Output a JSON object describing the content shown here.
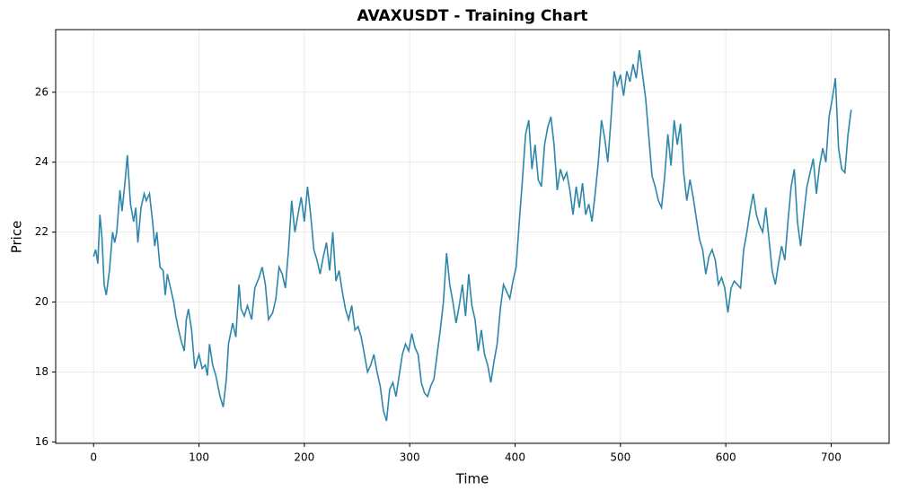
{
  "chart_data": {
    "type": "line",
    "title": "AVAXUSDT - Training Chart",
    "x_label": "Time",
    "y_label": "Price",
    "x": [
      0,
      2,
      4,
      6,
      8,
      10,
      12,
      15,
      18,
      20,
      22,
      25,
      27,
      30,
      32,
      35,
      38,
      40,
      42,
      45,
      48,
      50,
      53,
      56,
      58,
      60,
      63,
      66,
      68,
      70,
      73,
      76,
      78,
      80,
      83,
      86,
      88,
      90,
      93,
      96,
      100,
      103,
      106,
      108,
      110,
      113,
      116,
      120,
      123,
      126,
      128,
      132,
      135,
      138,
      140,
      143,
      146,
      150,
      153,
      157,
      160,
      163,
      166,
      170,
      173,
      176,
      179,
      182,
      185,
      188,
      191,
      194,
      197,
      200,
      203,
      206,
      209,
      212,
      215,
      218,
      221,
      224,
      227,
      230,
      233,
      236,
      239,
      242,
      245,
      248,
      251,
      254,
      257,
      260,
      263,
      266,
      269,
      272,
      275,
      278,
      281,
      284,
      287,
      290,
      293,
      296,
      299,
      302,
      305,
      308,
      311,
      314,
      317,
      320,
      323,
      326,
      329,
      332,
      335,
      338,
      341,
      344,
      347,
      350,
      353,
      356,
      359,
      362,
      365,
      368,
      371,
      374,
      377,
      380,
      383,
      386,
      389,
      392,
      395,
      398,
      401,
      404,
      407,
      410,
      413,
      416,
      419,
      422,
      425,
      428,
      431,
      434,
      437,
      440,
      443,
      446,
      449,
      452,
      455,
      458,
      461,
      464,
      467,
      470,
      473,
      476,
      479,
      482,
      485,
      488,
      491,
      494,
      497,
      500,
      503,
      506,
      509,
      512,
      515,
      518,
      521,
      524,
      527,
      530,
      533,
      536,
      539,
      542,
      545,
      548,
      551,
      554,
      557,
      560,
      563,
      566,
      569,
      572,
      575,
      578,
      581,
      584,
      587,
      590,
      593,
      596,
      599,
      602,
      605,
      608,
      611,
      614,
      617,
      620,
      623,
      626,
      629,
      632,
      635,
      638,
      641,
      644,
      647,
      650,
      653,
      656,
      659,
      662,
      665,
      668,
      671,
      674,
      677,
      680,
      683,
      686,
      689,
      692,
      695,
      698,
      701,
      704,
      707,
      710,
      713,
      716,
      719
    ],
    "series": [
      {
        "name": "Price",
        "color": "#2e86ab",
        "values": [
          21.3,
          21.5,
          21.1,
          22.5,
          21.8,
          20.5,
          20.2,
          20.9,
          22.0,
          21.7,
          22.0,
          23.2,
          22.6,
          23.5,
          24.2,
          22.8,
          22.3,
          22.7,
          21.7,
          22.7,
          23.1,
          22.9,
          23.1,
          22.3,
          21.6,
          22.0,
          21.0,
          20.9,
          20.2,
          20.8,
          20.4,
          20.0,
          19.6,
          19.3,
          18.9,
          18.6,
          19.5,
          19.8,
          19.2,
          18.1,
          18.5,
          18.1,
          18.2,
          17.9,
          18.8,
          18.2,
          17.9,
          17.3,
          17.0,
          17.8,
          18.8,
          19.4,
          19.0,
          20.5,
          19.8,
          19.6,
          19.9,
          19.5,
          20.4,
          20.7,
          21.0,
          20.5,
          19.5,
          19.7,
          20.1,
          21.0,
          20.8,
          20.4,
          21.5,
          22.9,
          22.0,
          22.5,
          23.0,
          22.3,
          23.3,
          22.5,
          21.5,
          21.2,
          20.8,
          21.3,
          21.7,
          20.9,
          22.0,
          20.6,
          20.9,
          20.3,
          19.8,
          19.5,
          19.9,
          19.2,
          19.3,
          19.0,
          18.5,
          18.0,
          18.2,
          18.5,
          18.0,
          17.6,
          16.9,
          16.6,
          17.5,
          17.7,
          17.3,
          17.9,
          18.5,
          18.8,
          18.6,
          19.1,
          18.7,
          18.5,
          17.7,
          17.4,
          17.3,
          17.6,
          17.8,
          18.5,
          19.2,
          20.0,
          21.4,
          20.5,
          20.0,
          19.4,
          19.9,
          20.5,
          19.6,
          20.8,
          19.9,
          19.5,
          18.6,
          19.2,
          18.5,
          18.2,
          17.7,
          18.3,
          18.8,
          19.8,
          20.5,
          20.3,
          20.1,
          20.6,
          21.0,
          22.3,
          23.5,
          24.8,
          25.2,
          23.8,
          24.5,
          23.5,
          23.3,
          24.5,
          25.0,
          25.3,
          24.5,
          23.2,
          23.8,
          23.5,
          23.7,
          23.2,
          22.5,
          23.3,
          22.7,
          23.4,
          22.5,
          22.8,
          22.3,
          23.1,
          24.0,
          25.2,
          24.7,
          24.0,
          25.2,
          26.6,
          26.2,
          26.5,
          25.9,
          26.6,
          26.3,
          26.8,
          26.4,
          27.2,
          26.5,
          25.8,
          24.7,
          23.6,
          23.3,
          22.9,
          22.7,
          23.6,
          24.8,
          23.9,
          25.2,
          24.5,
          25.1,
          23.7,
          22.9,
          23.5,
          23.0,
          22.4,
          21.8,
          21.5,
          20.8,
          21.3,
          21.5,
          21.2,
          20.5,
          20.7,
          20.4,
          19.7,
          20.4,
          20.6,
          20.5,
          20.4,
          21.5,
          22.0,
          22.6,
          23.1,
          22.5,
          22.2,
          22.0,
          22.7,
          21.8,
          20.9,
          20.5,
          21.1,
          21.6,
          21.2,
          22.3,
          23.3,
          23.8,
          22.3,
          21.6,
          22.5,
          23.3,
          23.7,
          24.1,
          23.1,
          23.9,
          24.4,
          24.0,
          25.3,
          25.8,
          26.4,
          24.4,
          23.8,
          23.7,
          24.8,
          25.5
        ]
      }
    ],
    "xlim": [
      -36,
      755
    ],
    "ylim": [
      15.96,
      27.79
    ],
    "xticks": [
      0,
      100,
      200,
      300,
      400,
      500,
      600,
      700
    ],
    "yticks": [
      16,
      18,
      20,
      22,
      24,
      26
    ],
    "grid": true
  }
}
